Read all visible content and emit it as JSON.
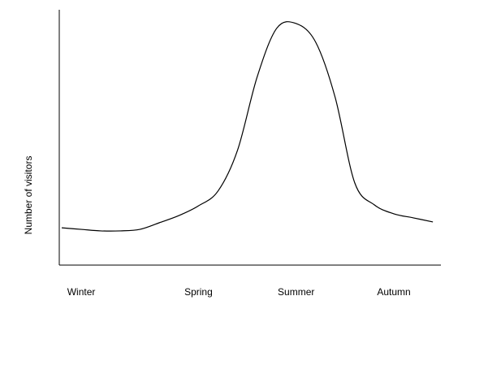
{
  "chart_data": {
    "type": "line",
    "y_label": "Number of visitors",
    "categories": [
      null,
      "Winter",
      null,
      null,
      null,
      null,
      null,
      "Spring",
      null,
      null,
      null,
      null,
      "Summer",
      null,
      null,
      null,
      null,
      "Autumn",
      null,
      null
    ],
    "values": [
      14.6,
      14,
      13.4,
      13.4,
      14,
      16.6,
      19.4,
      23.2,
      29,
      45,
      73.6,
      92.7,
      94.6,
      87.3,
      65.6,
      32.2,
      23.6,
      20.1,
      18.5,
      16.9
    ],
    "color": "#000000",
    "ylim": [
      0,
      100
    ]
  }
}
